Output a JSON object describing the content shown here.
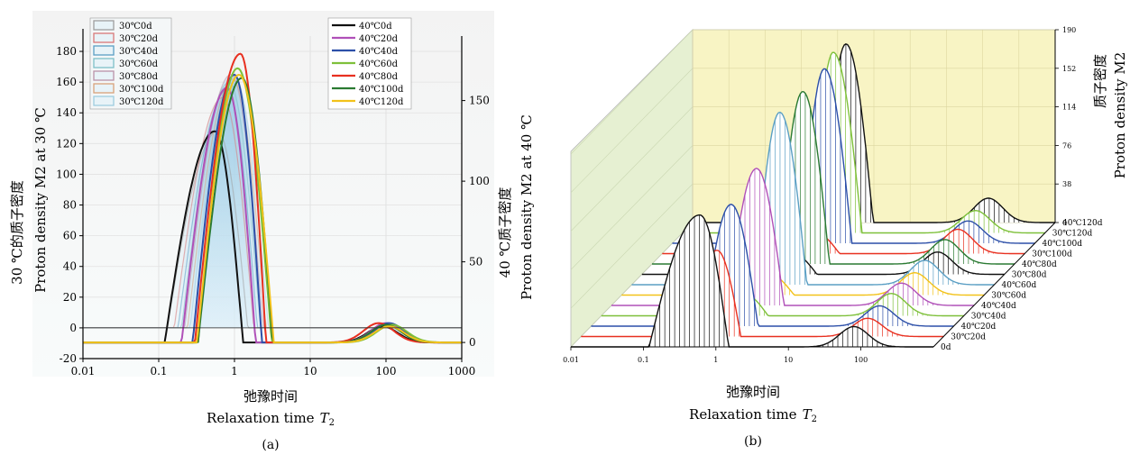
{
  "figure": {
    "xlabel_cn": "弛豫时间",
    "xlabel_en": "Relaxation time",
    "xlabel_sym": "T",
    "xlabel_sub": "2"
  },
  "panels": [
    {
      "caption": "(a)",
      "ylabel_left_cn": "30 ℃的质子密度",
      "ylabel_left_en": "Proton density M2 at 30 ℃",
      "ylabel_right_cn": "40 ℃质子密度",
      "ylabel_right_en": "Proton density M2 at 40 ℃"
    },
    {
      "caption": "(b)",
      "zlabel_cn": "质子密度",
      "zlabel_en": "Proton density M2"
    }
  ],
  "colors": {
    "c0": "#111111",
    "c20": "#b050b8",
    "c40": "#2c4fa8",
    "c60": "#7ec03a",
    "c80": "#e83020",
    "c100": "#2a7a32",
    "c120": "#f2c21a",
    "d30_0": "#9e9e9e",
    "d30_20": "#d87878",
    "d30_40": "#5b9fc4",
    "d30_60": "#7ec0c8",
    "d30_80": "#ba92a8",
    "d30_100": "#d9a27a",
    "d30_120": "#9ecde0"
  },
  "chart_data": [
    {
      "type": "line",
      "xscale": "log",
      "xlim": [
        0.01,
        1000
      ],
      "xticks": [
        "0.01",
        "0.1",
        "1",
        "10",
        "100",
        "1000"
      ],
      "ylim_left": [
        -20,
        190
      ],
      "yticks_left": [
        "-20",
        "0",
        "20",
        "40",
        "60",
        "80",
        "100",
        "120",
        "140",
        "160",
        "180"
      ],
      "ylim_right": [
        -10,
        190
      ],
      "yticks_right": [
        "0",
        "50",
        "100",
        "150"
      ],
      "grid": true,
      "legend_left": {
        "position": "top-left",
        "entries": [
          "30℃0d",
          "30℃20d",
          "30℃40d",
          "30℃60d",
          "30℃80d",
          "30℃100d",
          "30℃120d"
        ]
      },
      "legend_right": {
        "position": "top-center",
        "entries": [
          "40℃0d",
          "40℃20d",
          "40℃40d",
          "40℃60d",
          "40℃80d",
          "40℃100d",
          "40℃120d"
        ]
      },
      "series_40": [
        {
          "name": "40℃0d",
          "color_key": "c0",
          "peak_t2": 0.55,
          "peak_value": 131,
          "start": 0.12,
          "end": 1.3,
          "second_peak_t2": 90,
          "second_peak_value": 10
        },
        {
          "name": "40℃20d",
          "color_key": "c20",
          "peak_t2": 0.8,
          "peak_value": 158,
          "start": 0.2,
          "end": 1.9,
          "second_peak_t2": 100,
          "second_peak_value": 12
        },
        {
          "name": "40℃40d",
          "color_key": "c40",
          "peak_t2": 1.0,
          "peak_value": 166,
          "start": 0.28,
          "end": 2.3,
          "second_peak_t2": 110,
          "second_peak_value": 12
        },
        {
          "name": "40℃60d",
          "color_key": "c60",
          "peak_t2": 1.1,
          "peak_value": 170,
          "start": 0.33,
          "end": 3.1,
          "second_peak_t2": 120,
          "second_peak_value": 11
        },
        {
          "name": "40℃80d",
          "color_key": "c80",
          "peak_t2": 1.2,
          "peak_value": 179,
          "start": 0.3,
          "end": 2.6,
          "second_peak_t2": 80,
          "second_peak_value": 12
        },
        {
          "name": "40℃100d",
          "color_key": "c100",
          "peak_t2": 1.25,
          "peak_value": 164,
          "start": 0.33,
          "end": 3.2,
          "second_peak_t2": 100,
          "second_peak_value": 11
        },
        {
          "name": "40℃120d",
          "color_key": "c120",
          "peak_t2": 1.15,
          "peak_value": 166,
          "start": 0.32,
          "end": 3.3,
          "second_peak_t2": 110,
          "second_peak_value": 10
        }
      ],
      "series_30": [
        {
          "name": "30℃0d",
          "color_key": "d30_0",
          "peak_t2": 0.6,
          "peak_value": 128,
          "start": 0.13,
          "end": 1.5
        },
        {
          "name": "30℃20d",
          "color_key": "d30_20",
          "peak_t2": 0.7,
          "peak_value": 150,
          "start": 0.16,
          "end": 1.8
        },
        {
          "name": "30℃40d",
          "color_key": "d30_40",
          "peak_t2": 0.8,
          "peak_value": 155,
          "start": 0.18,
          "end": 2.0
        },
        {
          "name": "30℃60d",
          "color_key": "d30_60",
          "peak_t2": 0.85,
          "peak_value": 160,
          "start": 0.2,
          "end": 2.2
        },
        {
          "name": "30℃80d",
          "color_key": "d30_80",
          "peak_t2": 0.9,
          "peak_value": 165,
          "start": 0.22,
          "end": 2.4
        },
        {
          "name": "30℃100d",
          "color_key": "d30_100",
          "peak_t2": 0.95,
          "peak_value": 162,
          "start": 0.24,
          "end": 2.6
        },
        {
          "name": "30℃120d",
          "color_key": "d30_120",
          "peak_t2": 1.0,
          "peak_value": 163,
          "start": 0.26,
          "end": 2.8
        }
      ]
    },
    {
      "type": "area",
      "view": "3d-waterfall",
      "xscale": "log",
      "xlim": [
        0.01,
        1000
      ],
      "xticks": [
        "0.01",
        "0.1",
        "1",
        "10",
        "100"
      ],
      "zlim": [
        0,
        190
      ],
      "zticks": [
        "0",
        "38",
        "76",
        "114",
        "152",
        "190"
      ],
      "depth_labels": [
        "0d",
        "30℃20d",
        "40℃20d",
        "30℃40d",
        "40℃40d",
        "30℃60d",
        "40℃60d",
        "30℃80d",
        "40℃80d",
        "30℃100d",
        "40℃100d",
        "30℃120d",
        "40℃120d"
      ],
      "series": [
        {
          "name": "0d",
          "color_key": "c0",
          "peak_t2": 0.6,
          "peak_value": 130,
          "start": 0.12,
          "end": 1.5,
          "second_peak_t2": 80,
          "second_peak_value": 20
        },
        {
          "name": "30℃20d",
          "color_key": "c80",
          "peak_t2": 0.75,
          "peak_value": 85,
          "start": 0.3,
          "end": 1.6,
          "second_peak_t2": 90,
          "second_peak_value": 18
        },
        {
          "name": "40℃20d",
          "color_key": "c40",
          "peak_t2": 0.85,
          "peak_value": 120,
          "start": 0.35,
          "end": 2.0,
          "second_peak_t2": 95,
          "second_peak_value": 20
        },
        {
          "name": "30℃40d",
          "color_key": "c60",
          "peak_t2": 0.9,
          "peak_value": 22,
          "start": 0.4,
          "end": 2.0,
          "second_peak_t2": 100,
          "second_peak_value": 22
        },
        {
          "name": "40℃40d",
          "color_key": "c20",
          "peak_t2": 1.0,
          "peak_value": 135,
          "start": 0.4,
          "end": 2.4,
          "second_peak_t2": 100,
          "second_peak_value": 22
        },
        {
          "name": "30℃60d",
          "color_key": "c120",
          "peak_t2": 1.0,
          "peak_value": 22,
          "start": 0.45,
          "end": 2.4,
          "second_peak_t2": 110,
          "second_peak_value": 22
        },
        {
          "name": "40℃60d",
          "color_key": "d30_40",
          "peak_t2": 1.1,
          "peak_value": 170,
          "start": 0.5,
          "end": 2.6,
          "second_peak_t2": 110,
          "second_peak_value": 24
        },
        {
          "name": "30℃80d",
          "color_key": "c0",
          "peak_t2": 1.1,
          "peak_value": 22,
          "start": 0.5,
          "end": 2.6,
          "second_peak_t2": 120,
          "second_peak_value": 22
        },
        {
          "name": "40℃80d",
          "color_key": "c100",
          "peak_t2": 1.2,
          "peak_value": 170,
          "start": 0.55,
          "end": 2.8,
          "second_peak_t2": 110,
          "second_peak_value": 24
        },
        {
          "name": "30℃100d",
          "color_key": "c80",
          "peak_t2": 1.2,
          "peak_value": 22,
          "start": 0.55,
          "end": 2.8,
          "second_peak_t2": 120,
          "second_peak_value": 24
        },
        {
          "name": "40℃100d",
          "color_key": "c40",
          "peak_t2": 1.25,
          "peak_value": 172,
          "start": 0.6,
          "end": 3.0,
          "second_peak_t2": 120,
          "second_peak_value": 22
        },
        {
          "name": "30℃120d",
          "color_key": "c60",
          "peak_t2": 1.2,
          "peak_value": 178,
          "start": 0.6,
          "end": 3.0,
          "second_peak_t2": 110,
          "second_peak_value": 22
        },
        {
          "name": "40℃120d",
          "color_key": "c0",
          "peak_t2": 1.3,
          "peak_value": 176,
          "start": 0.62,
          "end": 3.1,
          "second_peak_t2": 120,
          "second_peak_value": 24
        }
      ]
    }
  ]
}
